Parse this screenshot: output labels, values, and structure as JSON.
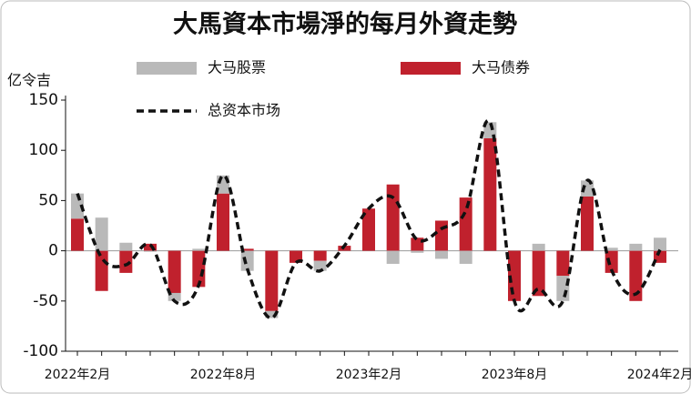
{
  "chart_data": {
    "type": "bar",
    "title": "大馬資本市場淨的每月外資走勢",
    "y_label": "亿令吉",
    "categories": [
      "2022年2月",
      null,
      null,
      null,
      null,
      null,
      "2022年8月",
      null,
      null,
      null,
      null,
      null,
      "2023年2月",
      null,
      null,
      null,
      null,
      null,
      "2023年8月",
      null,
      null,
      null,
      null,
      null,
      "2024年2月"
    ],
    "series": [
      {
        "name": "大马债券",
        "color": "#c0212d",
        "type": "bar",
        "values": [
          32,
          -40,
          -22,
          7,
          -42,
          -36,
          57,
          2,
          -60,
          -12,
          -10,
          5,
          42,
          66,
          13,
          30,
          53,
          112,
          -50,
          -45,
          -25,
          54,
          -22,
          -50,
          -12
        ]
      },
      {
        "name": "大马股票",
        "color": "#b9b9b9",
        "type": "bar",
        "values": [
          25,
          33,
          8,
          -1,
          -8,
          2,
          18,
          -20,
          -7,
          0,
          -10,
          0,
          0,
          -13,
          -2,
          -8,
          -13,
          16,
          0,
          7,
          -25,
          16,
          3,
          7,
          13
        ]
      },
      {
        "name": "总资本市场",
        "color": "#111111",
        "type": "line",
        "values": [
          57,
          -7,
          -14,
          6,
          -50,
          -34,
          75,
          -18,
          -67,
          -12,
          -20,
          5,
          42,
          53,
          11,
          22,
          40,
          128,
          -50,
          -38,
          -50,
          70,
          -19,
          -43,
          1
        ]
      }
    ],
    "ylim": [
      -100,
      150
    ],
    "yticks": [
      -100,
      -50,
      0,
      50,
      100,
      150
    ]
  }
}
